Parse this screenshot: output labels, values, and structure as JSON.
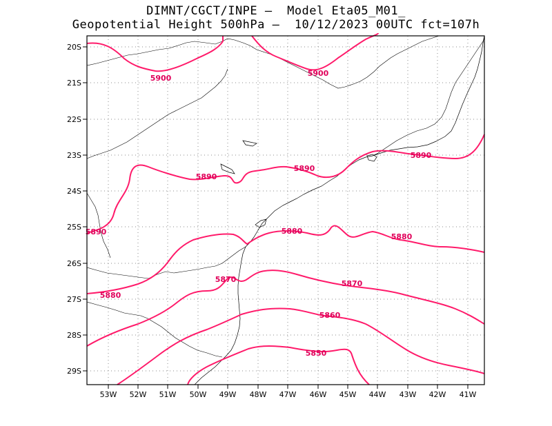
{
  "header": {
    "line1": "DIMNT/CGCT/INPE –  Model Eta05_M01_",
    "line2": "Geopotential Height 500hPa –  10/12/2023 00UTC fct=107h"
  },
  "axes": {
    "lat_labels": [
      "20S",
      "21S",
      "22S",
      "23S",
      "24S",
      "25S",
      "26S",
      "27S",
      "28S",
      "29S"
    ],
    "lon_labels": [
      "53W",
      "52W",
      "51W",
      "50W",
      "49W",
      "48W",
      "47W",
      "46W",
      "45W",
      "44W",
      "43W",
      "42W",
      "41W"
    ]
  },
  "chart_data": {
    "type": "contour-map",
    "title": "Geopotential Height 500hPa",
    "variable": "Geopotential Height",
    "level": "500hPa",
    "run": "10/12/2023 00UTC",
    "forecast": "fct=107h",
    "model": "Eta05_M01_",
    "lon_range": [
      -53.6,
      -40.5
    ],
    "lat_range": [
      -29.4,
      -19.8
    ],
    "colors": {
      "contour": "#ff1a6a",
      "label": "#e0005a"
    },
    "contour_labels": [
      "5900",
      "5900",
      "5890",
      "5890",
      "5890",
      "5890",
      "5880",
      "5880",
      "5880",
      "5870",
      "5870",
      "5860",
      "5850"
    ]
  }
}
